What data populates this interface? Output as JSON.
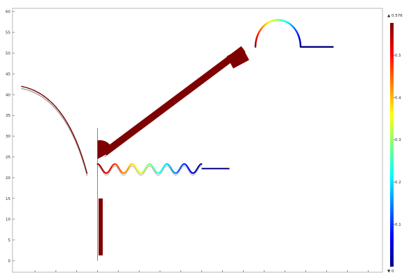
{
  "chart_data": {
    "type": "surface-line-plot",
    "title": "",
    "xlabel": "",
    "ylabel": "",
    "y_axis": {
      "ticks": [
        0,
        5,
        10,
        15,
        20,
        25,
        30,
        35,
        40,
        45,
        50,
        55,
        60
      ],
      "range": [
        -2,
        61
      ]
    },
    "x_axis": {
      "range": [
        -24,
        95
      ],
      "tick_labels_visible": false
    },
    "colorbar": {
      "colormap": "jet",
      "max_label": "▲ 0.576",
      "min_label": "▼ 0",
      "ticks": [
        0.1,
        0.2,
        0.3,
        0.4,
        0.5
      ],
      "range": [
        0,
        0.576
      ]
    },
    "features": {
      "long_arc": {
        "type": "arc",
        "x_range": [
          -22,
          -3
        ],
        "y_range": [
          21,
          42
        ],
        "value": 0.576
      },
      "ramp": {
        "type": "thick-band",
        "from": [
          2,
          26
        ],
        "to": [
          42,
          51
        ],
        "value": 0.576
      },
      "wall": {
        "type": "vertical-line",
        "x": 0,
        "y_range": [
          0,
          32
        ]
      },
      "lower_block": {
        "type": "bar",
        "x_range": [
          0.3,
          1.5
        ],
        "y_range": [
          1.3,
          15
        ],
        "value": 0.576
      },
      "wave": {
        "type": "sinusoid-line",
        "x_range": [
          0,
          30
        ],
        "y_center": 22.2,
        "amplitude": 1.1,
        "cycles": 6,
        "tail_x_end": 38,
        "value_start": 0.576,
        "value_end": 0.0
      },
      "semicircle": {
        "type": "arc",
        "center": [
          52,
          51.5
        ],
        "radius": 6.5,
        "value_start": 0.576,
        "value_end": 0.0
      },
      "right_tail": {
        "type": "line",
        "x_range": [
          58.5,
          68
        ],
        "y": 51.5,
        "value": 0.0
      }
    }
  }
}
